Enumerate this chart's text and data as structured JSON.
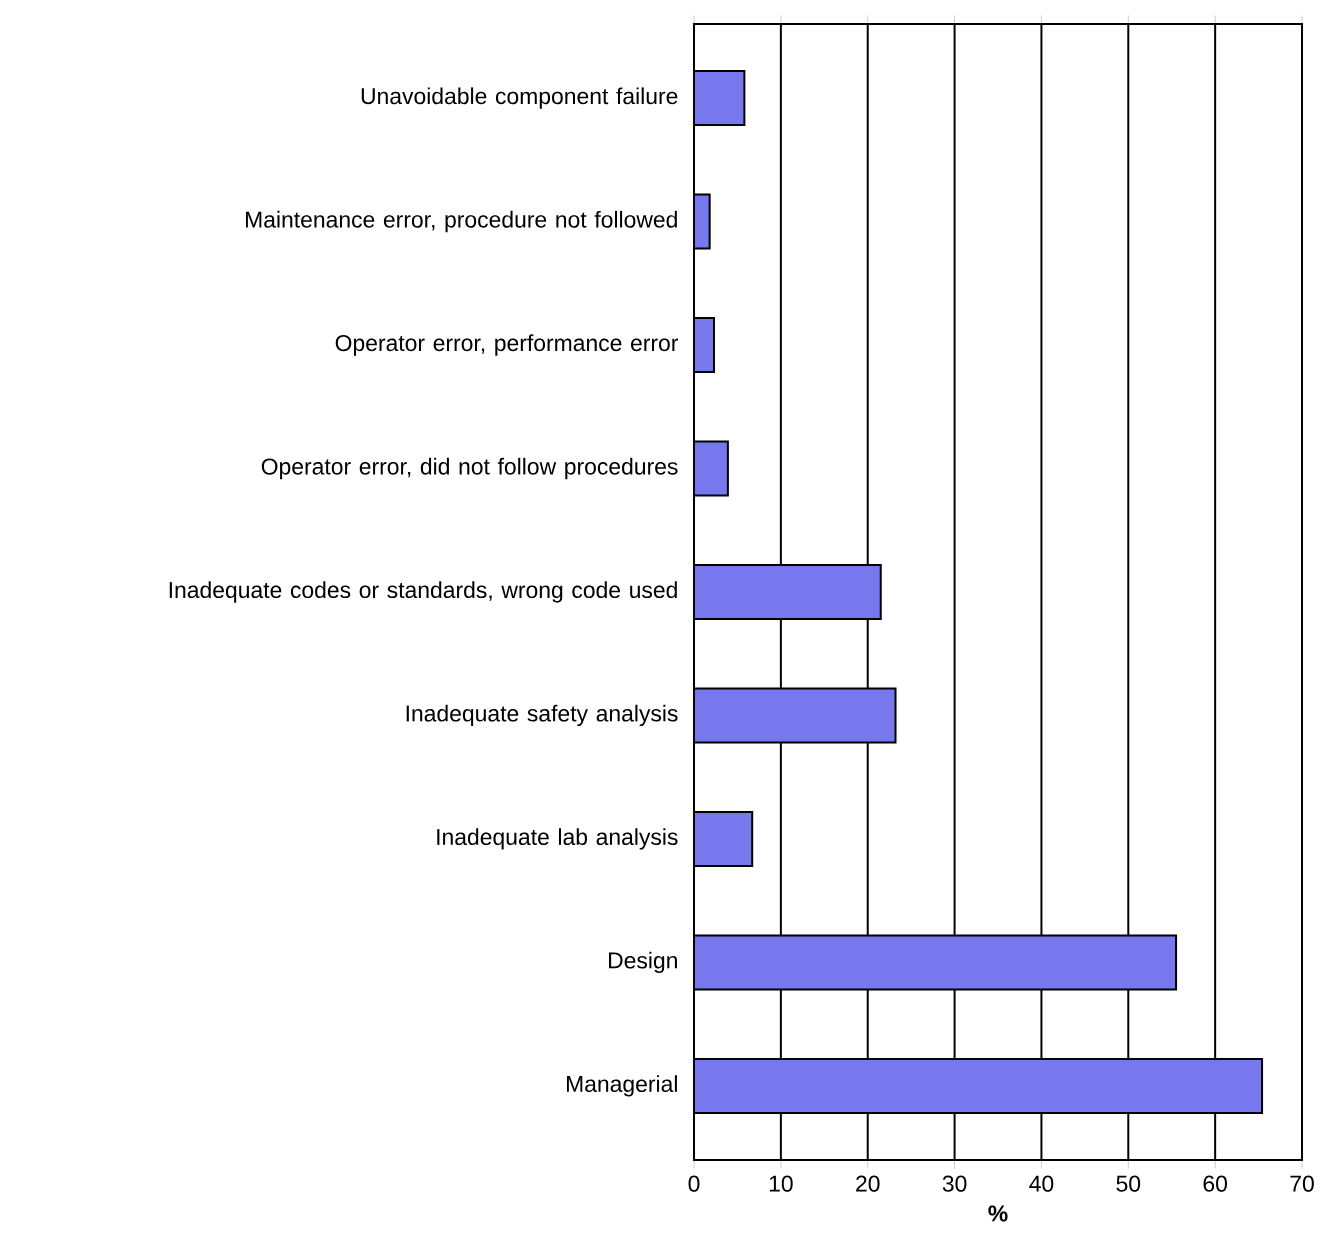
{
  "chart_data": {
    "type": "bar",
    "orientation": "horizontal",
    "xlabel": "%",
    "categories": [
      "Unavoidable component failure",
      "Maintenance error, procedure not followed",
      "Operator error, performance error",
      "Operator error, did not follow procedures",
      "Inadequate codes or standards, wrong code used",
      "Inadequate safety analysis",
      "Inadequate lab analysis",
      "Design",
      "Managerial"
    ],
    "values": [
      5.8,
      1.8,
      2.3,
      3.9,
      21.5,
      23.2,
      6.7,
      55.5,
      65.4
    ],
    "color": "#7777ee",
    "xlim": [
      0,
      70
    ],
    "xticks": [
      0,
      10,
      20,
      30,
      40,
      50,
      60,
      70
    ],
    "grid": "x"
  }
}
